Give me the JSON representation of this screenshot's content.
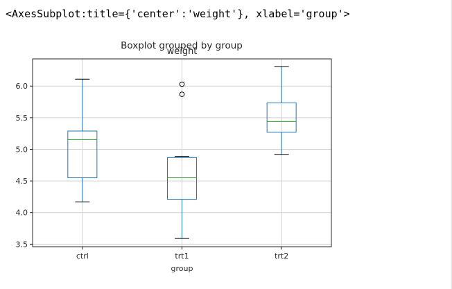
{
  "output_repr": "<AxesSubplot:title={'center':'weight'}, xlabel='group'>",
  "colors": {
    "box": "#1f77b4",
    "median": "#2ca02c",
    "whisker": "#1f77b4",
    "cap": "#000000",
    "grid": "#d2d2d2",
    "axes": "#262626"
  },
  "chart_data": {
    "type": "boxplot",
    "suptitle": "Boxplot grouped by group",
    "title": "weight",
    "xlabel": "group",
    "ylabel": "",
    "ylim": [
      3.46,
      6.43
    ],
    "yticks": [
      "3.5",
      "4.0",
      "4.5",
      "5.0",
      "5.5",
      "6.0"
    ],
    "grid": true,
    "categories": [
      "ctrl",
      "trt1",
      "trt2"
    ],
    "boxes": [
      {
        "name": "ctrl",
        "whisker_low": 4.17,
        "q1": 4.55,
        "median": 5.155,
        "q3": 5.29,
        "whisker_high": 6.11,
        "outliers": []
      },
      {
        "name": "trt1",
        "whisker_low": 3.59,
        "q1": 4.21,
        "median": 4.55,
        "q3": 4.87,
        "whisker_high": 4.89,
        "outliers": [
          5.87,
          6.03
        ]
      },
      {
        "name": "trt2",
        "whisker_low": 4.92,
        "q1": 5.27,
        "median": 5.44,
        "q3": 5.735,
        "whisker_high": 6.31,
        "outliers": []
      }
    ]
  }
}
